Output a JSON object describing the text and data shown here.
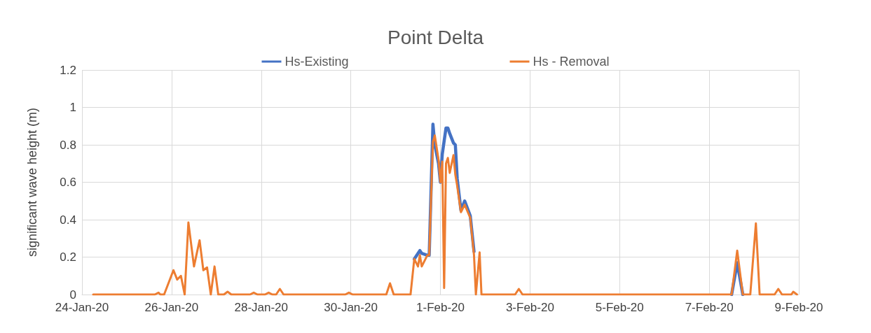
{
  "chart_data": {
    "type": "line",
    "title": "Point Delta",
    "ylabel": "significant wave height (m)",
    "x": [
      "--01-24T06:00",
      "--01-25T15:00",
      "--01-25T17:00",
      "--01-25T18:00",
      "--01-25T20:00",
      "--01-26T01:00",
      "--01-26T03:00",
      "--01-26T05:00",
      "--01-26T07:00",
      "--01-26T09:00",
      "--01-26T12:00",
      "--01-26T15:00",
      "--01-26T17:00",
      "--01-26T19:00",
      "--01-26T21:00",
      "--01-26T23:00",
      "--01-27T01:00",
      "--01-27T04:00",
      "--01-27T06:00",
      "--01-27T08:00",
      "--01-27T18:00",
      "--01-27T20:00",
      "--01-27T22:00",
      "--01-28T02:00",
      "--01-28T04:00",
      "--01-28T06:00",
      "--01-28T08:00",
      "--01-28T10:00",
      "--01-28T12:00",
      "--01-29T21:00",
      "--01-29T23:00",
      "--01-30T01:00",
      "--01-30T19:00",
      "--01-30T21:00",
      "--01-30T23:00",
      "--01-31T08:00",
      "--01-31T10:00",
      "--01-31T12:00",
      "--01-31T13:00",
      "--01-31T14:00",
      "--01-31T17:00",
      "--01-31T18:00",
      "--01-31T20:00",
      "--01-31T21:00",
      "--01-31T23:00",
      "--02-01T00:00",
      "--02-01T01:00",
      "--02-01T02:00",
      "--02-01T03:00",
      "--02-01T04:00",
      "--02-01T05:00",
      "--02-01T07:00",
      "--02-01T08:00",
      "--02-01T09:00",
      "--02-01T11:00",
      "--02-01T13:00",
      "--02-01T16:00",
      "--02-01T18:00",
      "--02-01T19:00",
      "--02-01T21:00",
      "--02-01T22:00",
      "--02-02T16:00",
      "--02-02T18:00",
      "--02-02T20:00",
      "--02-07T12:00",
      "--02-07T15:00",
      "--02-07T18:00",
      "--02-07T22:00",
      "--02-08T01:00",
      "--02-08T03:00",
      "--02-08T11:00",
      "--02-08T13:00",
      "--02-08T15:00",
      "--02-08T20:00",
      "--02-08T21:00",
      "--02-08T23:00"
    ],
    "series": [
      {
        "name": "Hs-Existing",
        "color": "#4472c4",
        "values": [
          null,
          null,
          null,
          null,
          null,
          null,
          null,
          null,
          null,
          null,
          null,
          null,
          null,
          null,
          null,
          null,
          null,
          null,
          null,
          null,
          null,
          null,
          null,
          null,
          null,
          null,
          null,
          null,
          null,
          null,
          null,
          null,
          null,
          null,
          null,
          null,
          0.19,
          0.22,
          0.235,
          0.22,
          0.21,
          0.21,
          0.91,
          0.8,
          0.7,
          0.6,
          0.75,
          0.82,
          0.89,
          0.89,
          0.86,
          0.81,
          0.8,
          0.62,
          0.45,
          0.5,
          0.42,
          0.23,
          null,
          null,
          null,
          null,
          null,
          null,
          0,
          0.17,
          0,
          null,
          null,
          null,
          null,
          null,
          null,
          null,
          null,
          null
        ]
      },
      {
        "name": "Hs - Removal",
        "color": "#ed7d31",
        "values": [
          0,
          0,
          0.01,
          0,
          0,
          0.13,
          0.08,
          0.1,
          0,
          0.385,
          0.15,
          0.29,
          0.13,
          0.145,
          0,
          0.15,
          0,
          0,
          0.015,
          0,
          0,
          0.01,
          0,
          0,
          0.01,
          0,
          0,
          0.03,
          0,
          0,
          0.01,
          0,
          0,
          0.06,
          0,
          0,
          0.19,
          0.15,
          0.21,
          0.15,
          0.21,
          0.21,
          0.815,
          0.85,
          0.72,
          0.6,
          0.71,
          0.035,
          0.7,
          0.73,
          0.65,
          0.745,
          0.64,
          0.58,
          0.44,
          0.48,
          0.41,
          0.21,
          0,
          0.225,
          0,
          0,
          0.03,
          0,
          0,
          0.235,
          0,
          0,
          0.38,
          0,
          0,
          0.03,
          0,
          0,
          0.015,
          0
        ]
      }
    ],
    "xlim": [
      "--01-24",
      "--02-09"
    ],
    "xticks": [
      {
        "value": "--01-24",
        "label": "24-Jan-20"
      },
      {
        "value": "--01-26",
        "label": "26-Jan-20"
      },
      {
        "value": "--01-28",
        "label": "28-Jan-20"
      },
      {
        "value": "--01-30",
        "label": "30-Jan-20"
      },
      {
        "value": "--02-01",
        "label": "1-Feb-20"
      },
      {
        "value": "--02-03",
        "label": "3-Feb-20"
      },
      {
        "value": "--02-05",
        "label": "5-Feb-20"
      },
      {
        "value": "--02-07",
        "label": "7-Feb-20"
      },
      {
        "value": "--02-09",
        "label": "9-Feb-20"
      }
    ],
    "ylim": [
      0,
      1.2
    ],
    "yticks": [
      0,
      0.2,
      0.4,
      0.6,
      0.8,
      1,
      1.2
    ],
    "grid": true,
    "legend": "top",
    "marker": "none",
    "line_style": "solid"
  }
}
